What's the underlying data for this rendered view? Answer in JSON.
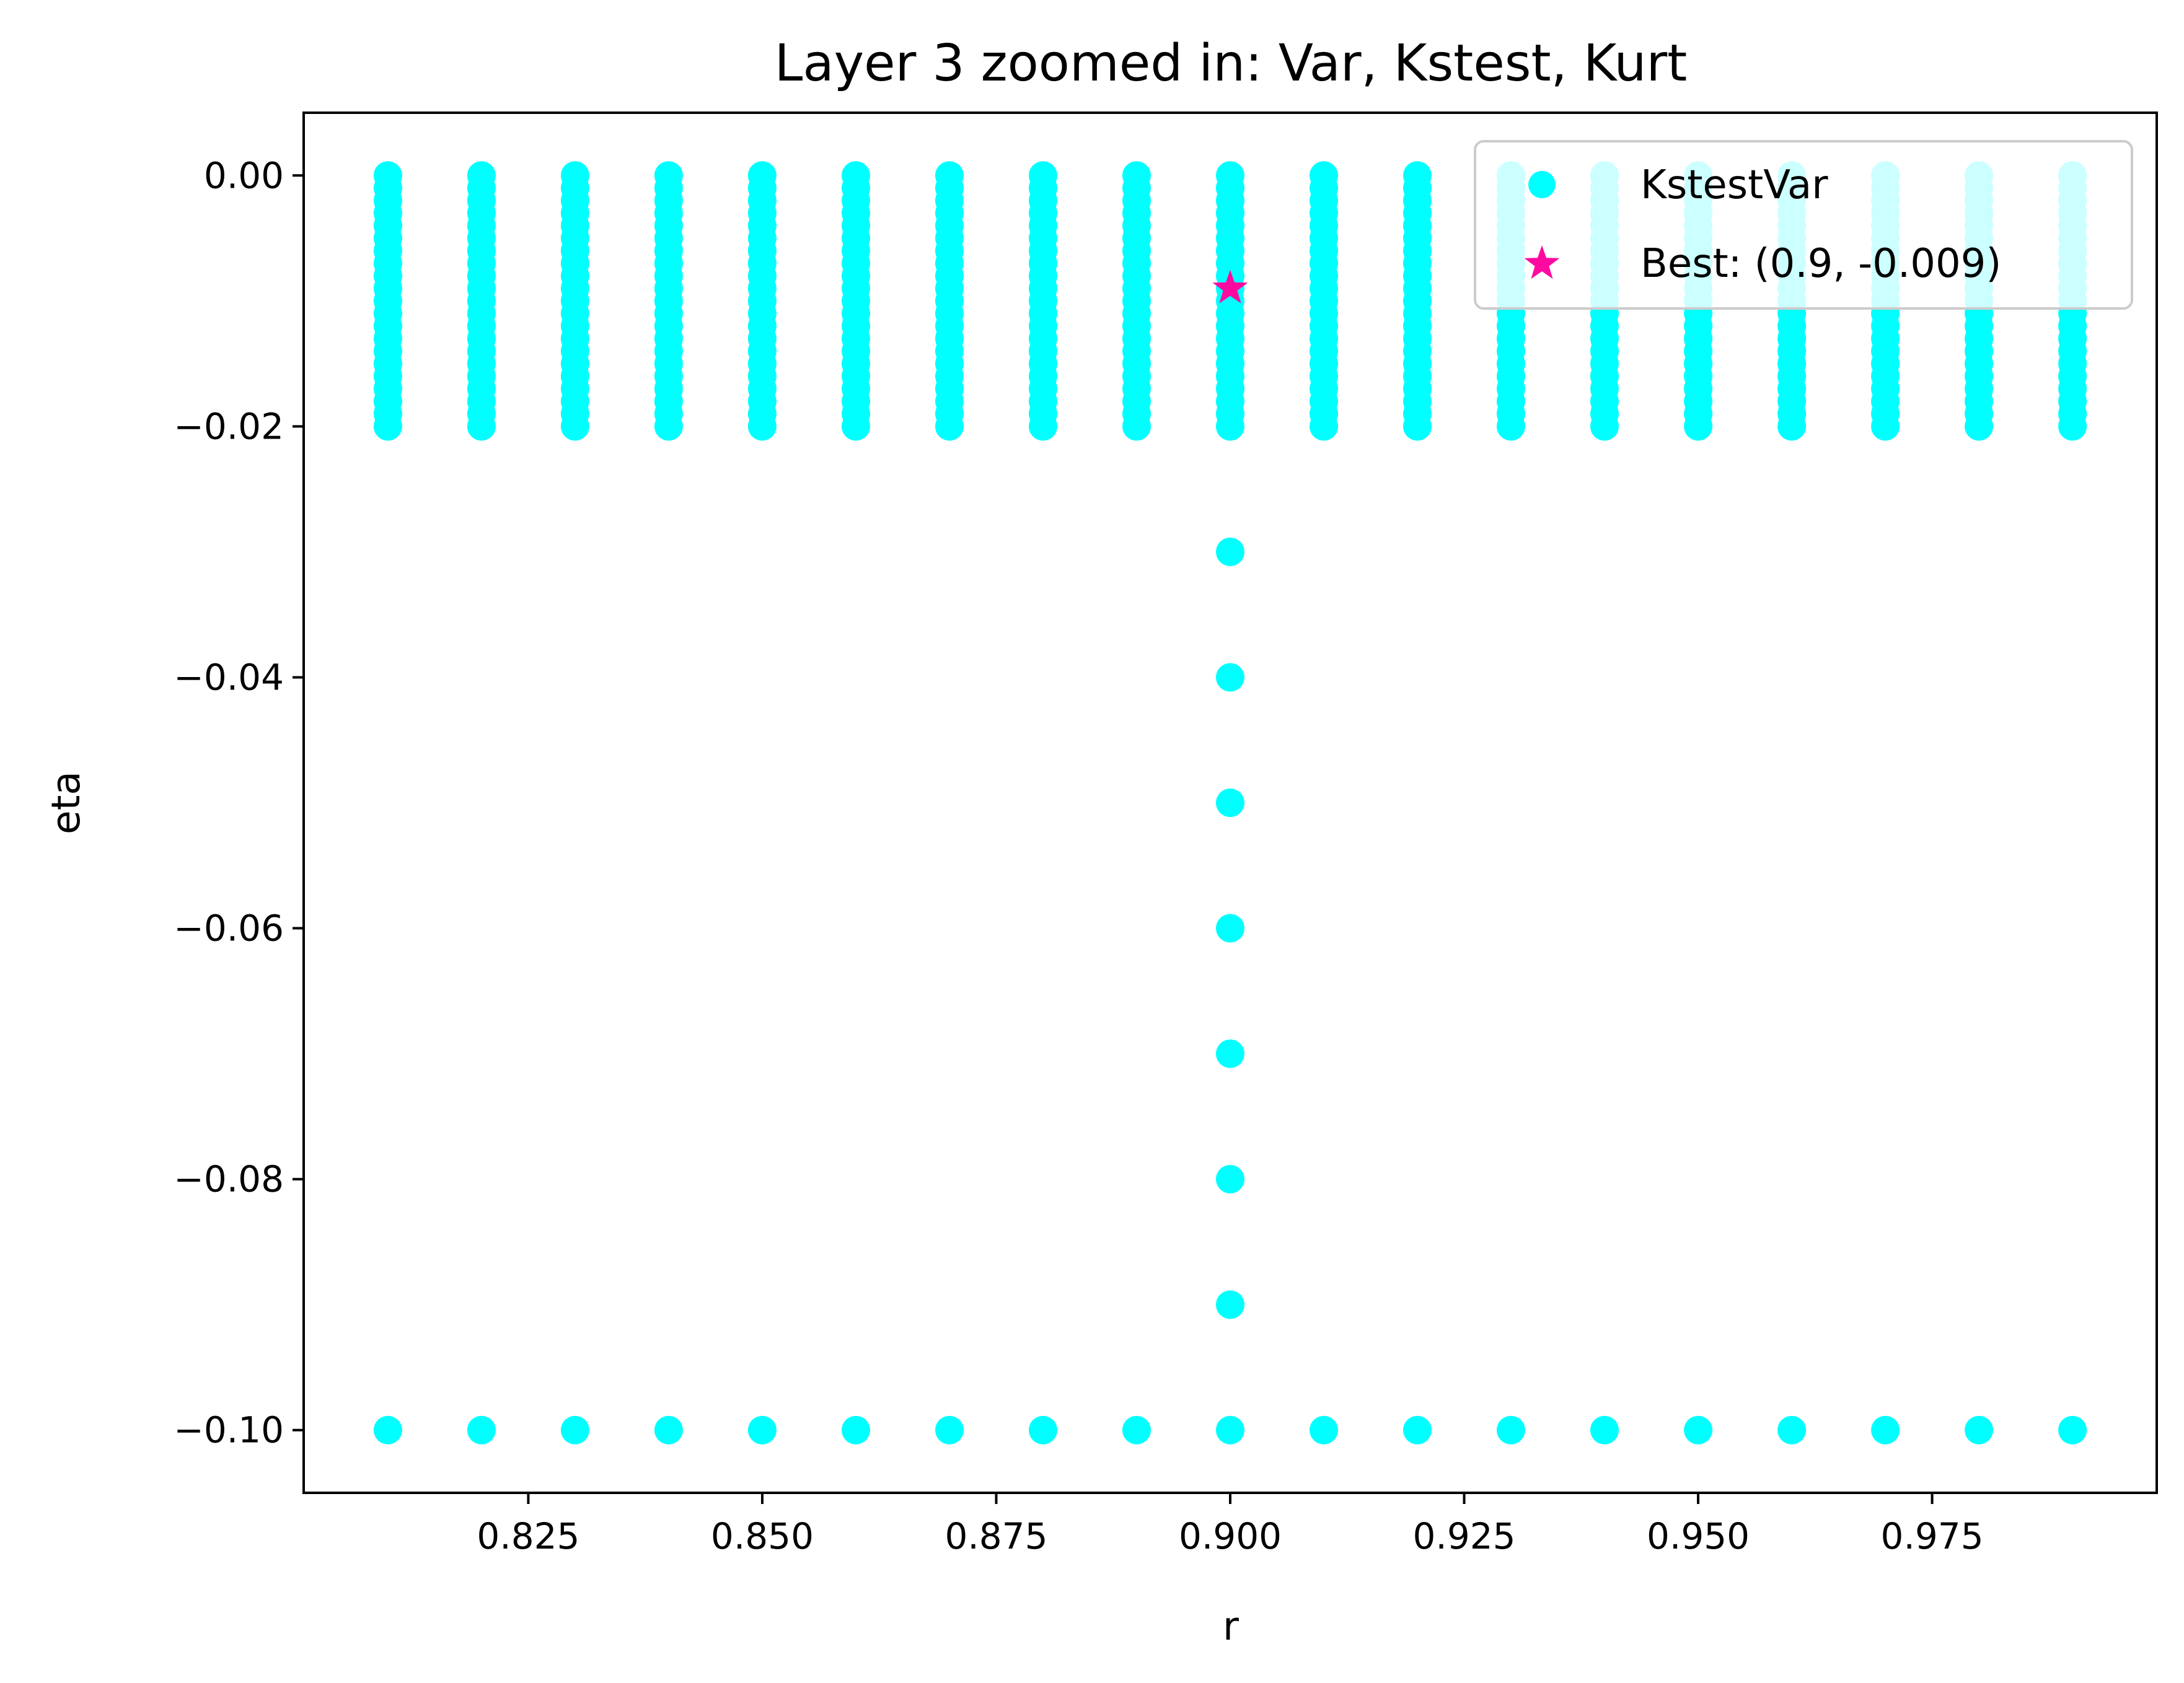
{
  "chart_data": {
    "type": "scatter",
    "title": "Layer 3 zoomed in: Var, Kstest, Kurt",
    "xlabel": "r",
    "ylabel": "eta",
    "xlim": [
      0.801,
      0.999
    ],
    "ylim": [
      -0.105,
      0.005
    ],
    "grid": false,
    "legend_position": "top-right",
    "x_ticks": [
      0.825,
      0.85,
      0.875,
      0.9,
      0.925,
      0.95,
      0.975
    ],
    "x_tick_labels": [
      "0.825",
      "0.850",
      "0.875",
      "0.900",
      "0.925",
      "0.950",
      "0.975"
    ],
    "y_ticks": [
      0.0,
      -0.02,
      -0.04,
      -0.06,
      -0.08,
      -0.1
    ],
    "y_tick_labels": [
      "0.00",
      "−0.02",
      "−0.04",
      "−0.06",
      "−0.08",
      "−0.10"
    ],
    "series": [
      {
        "name": "KstestVar",
        "color": "#00ffff",
        "marker": "circle",
        "x_grid": [
          0.81,
          0.82,
          0.83,
          0.84,
          0.85,
          0.86,
          0.87,
          0.88,
          0.89,
          0.9,
          0.91,
          0.92,
          0.93,
          0.94,
          0.95,
          0.96,
          0.97,
          0.98,
          0.99
        ],
        "y_dense_range": [
          -0.02,
          0.0
        ],
        "y_dense_step": 0.001,
        "extra_points": [
          {
            "x": 0.9,
            "y": -0.03
          },
          {
            "x": 0.9,
            "y": -0.04
          },
          {
            "x": 0.9,
            "y": -0.05
          },
          {
            "x": 0.9,
            "y": -0.06
          },
          {
            "x": 0.9,
            "y": -0.07
          },
          {
            "x": 0.9,
            "y": -0.08
          },
          {
            "x": 0.9,
            "y": -0.09
          }
        ],
        "bottom_row_y": -0.1
      },
      {
        "name": "Best: (0.9, -0.009)",
        "color": "#ff0aa0",
        "marker": "star",
        "points": [
          {
            "x": 0.9,
            "y": -0.009
          }
        ]
      }
    ]
  }
}
